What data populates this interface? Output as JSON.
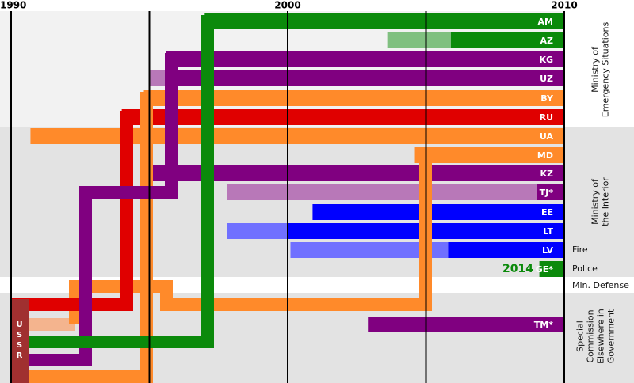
{
  "chart_data": {
    "type": "timeline",
    "xlim": [
      1990,
      2010
    ],
    "xticks": [
      1990,
      2000,
      2010
    ],
    "xgrid": [
      1990,
      1995,
      2000,
      2005,
      2010
    ],
    "rows": [
      {
        "label": "AM",
        "segments": [
          {
            "start": 1997,
            "end": 2010,
            "color": "#0b8a0b"
          }
        ]
      },
      {
        "label": "AZ",
        "segments": [
          {
            "start": 2003.6,
            "end": 2005.9,
            "color": "#80c080"
          },
          {
            "start": 2005.9,
            "end": 2010,
            "color": "#0b8a0b"
          }
        ]
      },
      {
        "label": "KG",
        "segments": [
          {
            "start": 1995.6,
            "end": 2010,
            "color": "#800080"
          }
        ]
      },
      {
        "label": "UZ",
        "segments": [
          {
            "start": 1995,
            "end": 1996,
            "color": "#b878b8"
          },
          {
            "start": 1996,
            "end": 2010,
            "color": "#800080"
          }
        ]
      },
      {
        "label": "BY",
        "segments": [
          {
            "start": 1994.8,
            "end": 2010,
            "color": "#ff8a2a"
          }
        ]
      },
      {
        "label": "RU",
        "segments": [
          {
            "start": 1994,
            "end": 2010,
            "color": "#e00000"
          }
        ]
      },
      {
        "label": "UA",
        "segments": [
          {
            "start": 1990.7,
            "end": 2010,
            "color": "#ff8a2a"
          }
        ]
      },
      {
        "label": "MD",
        "segments": [
          {
            "start": 2004.6,
            "end": 2010,
            "color": "#ff8a2a"
          }
        ]
      },
      {
        "label": "KZ",
        "segments": [
          {
            "start": 1995.1,
            "end": 2010,
            "color": "#800080"
          }
        ]
      },
      {
        "label": "TJ*",
        "segments": [
          {
            "start": 1997.8,
            "end": 2009,
            "color": "#b878b8"
          },
          {
            "start": 2009,
            "end": 2010,
            "color": "#800080"
          }
        ]
      },
      {
        "label": "EE",
        "segments": [
          {
            "start": 2000.9,
            "end": 2010,
            "color": "#0000ff"
          }
        ]
      },
      {
        "label": "LT",
        "segments": [
          {
            "start": 1997.8,
            "end": 2000,
            "color": "#7070ff"
          },
          {
            "start": 2000,
            "end": 2010,
            "color": "#0000ff"
          }
        ]
      },
      {
        "label": "LV",
        "segments": [
          {
            "start": 2000.1,
            "end": 2005.8,
            "color": "#7070ff"
          },
          {
            "start": 2005.8,
            "end": 2010,
            "color": "#0000ff"
          }
        ]
      },
      {
        "label": "GE*",
        "segments": [
          {
            "start": 2009.1,
            "end": 2010,
            "color": "#0b8a0b"
          }
        ]
      },
      {
        "label": "TM*",
        "segments": [
          {
            "start": 2002.9,
            "end": 2010,
            "color": "#800080"
          }
        ]
      }
    ],
    "groups": [
      {
        "lines": [
          "Ministry of",
          "Emergency Situations"
        ]
      },
      {
        "lines": [
          "Ministry of",
          "the Interior"
        ]
      },
      {
        "lines": [
          "Fire"
        ]
      },
      {
        "lines": [
          "Police"
        ]
      },
      {
        "lines": [
          "Min. Defense"
        ]
      },
      {
        "lines": [
          "Special",
          "Commission",
          "Elsewhere in",
          "Government"
        ]
      }
    ],
    "annotations": [
      "2014"
    ],
    "origin_label": "USSR"
  }
}
